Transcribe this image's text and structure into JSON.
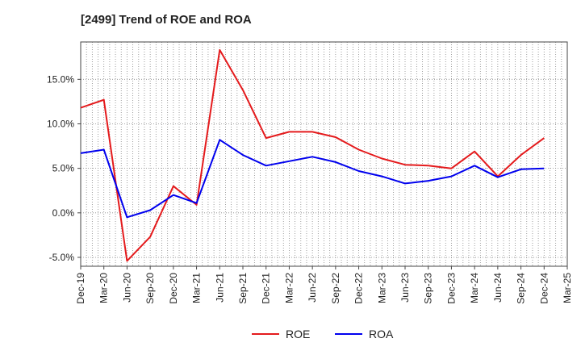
{
  "chart_data": {
    "type": "line",
    "title": "[2499]  Trend of ROE and ROA",
    "x": [
      "Dec-19",
      "Mar-20",
      "Jun-20",
      "Sep-20",
      "Dec-20",
      "Mar-21",
      "Jun-21",
      "Sep-21",
      "Dec-21",
      "Mar-22",
      "Jun-22",
      "Sep-22",
      "Dec-22",
      "Mar-23",
      "Jun-23",
      "Sep-23",
      "Dec-23",
      "Mar-24",
      "Jun-24",
      "Sep-24",
      "Dec-24",
      "Mar-25"
    ],
    "y_ticks": [
      "15.0%",
      "10.0%",
      "5.0%",
      "0.0%",
      "-5.0%"
    ],
    "y_tick_values": [
      15,
      10,
      5,
      0,
      -5
    ],
    "ylim": [
      -6,
      19.2
    ],
    "grid": true,
    "legend_position": "bottom",
    "series": [
      {
        "name": "ROE",
        "color": "#e41a1c",
        "values": [
          11.8,
          12.7,
          -5.4,
          -2.7,
          3.0,
          0.9,
          18.3,
          13.8,
          8.4,
          9.1,
          9.1,
          8.5,
          7.1,
          6.1,
          5.4,
          5.3,
          5.0,
          6.9,
          4.1,
          6.5,
          8.4,
          null
        ]
      },
      {
        "name": "ROA",
        "color": "#0000ee",
        "values": [
          6.7,
          7.1,
          -0.5,
          0.3,
          2.0,
          1.1,
          8.2,
          6.5,
          5.3,
          5.8,
          6.3,
          5.7,
          4.7,
          4.1,
          3.3,
          3.6,
          4.1,
          5.3,
          4.0,
          4.9,
          5.0,
          null
        ]
      }
    ]
  }
}
